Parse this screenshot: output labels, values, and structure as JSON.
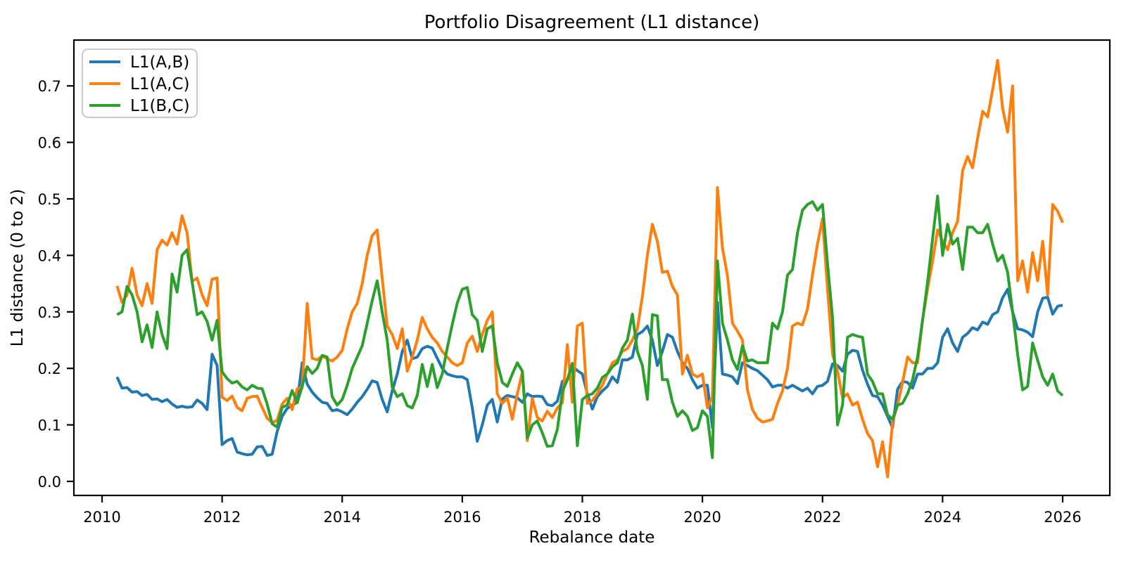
{
  "chart_data": {
    "type": "line",
    "title": "Portfolio Disagreement (L1 distance)",
    "xlabel": "Rebalance date",
    "ylabel": "L1 distance (0 to 2)",
    "x_start_year": 2010,
    "x_start_month": 4,
    "frequency": "monthly",
    "x_ticks": [
      2010,
      2012,
      2014,
      2016,
      2018,
      2020,
      2022,
      2024,
      2026
    ],
    "y_ticks": [
      "0.0",
      "0.1",
      "0.2",
      "0.3",
      "0.4",
      "0.5",
      "0.6",
      "0.7"
    ],
    "ylim": [
      -0.031,
      0.781
    ],
    "xlim": [
      2009.53,
      2026.79
    ],
    "grid": false,
    "legend": {
      "position": "upper left",
      "entries": [
        "L1(A,B)",
        "L1(A,C)",
        "L1(B,C)"
      ]
    },
    "colors": {
      "L1(A,B)": "#1f77b4",
      "L1(A,C)": "#ff7f0e",
      "L1(B,C)": "#2ca02c",
      "spine": "#000000",
      "legend_edge": "#cccccc",
      "background": "#ffffff"
    },
    "series": [
      {
        "name": "L1(A,B)",
        "color": "#1f77b4",
        "values": [
          0.185,
          0.165,
          0.166,
          0.158,
          0.159,
          0.152,
          0.154,
          0.145,
          0.146,
          0.141,
          0.145,
          0.137,
          0.131,
          0.133,
          0.131,
          0.132,
          0.144,
          0.138,
          0.127,
          0.225,
          0.205,
          0.065,
          0.072,
          0.076,
          0.052,
          0.049,
          0.047,
          0.048,
          0.061,
          0.062,
          0.046,
          0.048,
          0.088,
          0.115,
          0.129,
          0.135,
          0.14,
          0.21,
          0.172,
          0.158,
          0.148,
          0.14,
          0.138,
          0.125,
          0.127,
          0.123,
          0.118,
          0.128,
          0.14,
          0.15,
          0.163,
          0.178,
          0.175,
          0.145,
          0.123,
          0.16,
          0.19,
          0.23,
          0.25,
          0.217,
          0.22,
          0.235,
          0.239,
          0.236,
          0.218,
          0.2,
          0.19,
          0.187,
          0.185,
          0.185,
          0.18,
          0.13,
          0.071,
          0.1,
          0.135,
          0.145,
          0.105,
          0.146,
          0.152,
          0.15,
          0.148,
          0.14,
          0.155,
          0.15,
          0.151,
          0.15,
          0.136,
          0.134,
          0.142,
          0.177,
          0.18,
          0.205,
          0.196,
          0.19,
          0.155,
          0.128,
          0.15,
          0.16,
          0.168,
          0.185,
          0.175,
          0.215,
          0.215,
          0.22,
          0.26,
          0.265,
          0.275,
          0.25,
          0.205,
          0.23,
          0.26,
          0.255,
          0.23,
          0.21,
          0.2,
          0.18,
          0.165,
          0.17,
          0.17,
          0.095,
          0.317,
          0.19,
          0.188,
          0.185,
          0.173,
          0.21,
          0.205,
          0.2,
          0.196,
          0.188,
          0.18,
          0.167,
          0.17,
          0.17,
          0.165,
          0.17,
          0.165,
          0.16,
          0.165,
          0.155,
          0.168,
          0.17,
          0.177,
          0.208,
          0.205,
          0.195,
          0.225,
          0.232,
          0.23,
          0.197,
          0.172,
          0.152,
          0.15,
          0.135,
          0.115,
          0.095,
          0.163,
          0.177,
          0.175,
          0.165,
          0.19,
          0.19,
          0.2,
          0.2,
          0.21,
          0.255,
          0.27,
          0.245,
          0.23,
          0.255,
          0.262,
          0.272,
          0.268,
          0.282,
          0.278,
          0.295,
          0.3,
          0.325,
          0.34,
          0.3,
          0.27,
          0.268,
          0.264,
          0.256,
          0.3,
          0.324,
          0.326,
          0.296,
          0.31,
          0.312
        ]
      },
      {
        "name": "L1(A,C)",
        "color": "#ff7f0e",
        "values": [
          0.346,
          0.317,
          0.33,
          0.377,
          0.33,
          0.311,
          0.35,
          0.315,
          0.41,
          0.427,
          0.418,
          0.44,
          0.42,
          0.47,
          0.44,
          0.354,
          0.36,
          0.33,
          0.311,
          0.358,
          0.36,
          0.149,
          0.143,
          0.151,
          0.131,
          0.125,
          0.147,
          0.15,
          0.151,
          0.131,
          0.112,
          0.104,
          0.108,
          0.137,
          0.147,
          0.127,
          0.164,
          0.166,
          0.315,
          0.218,
          0.215,
          0.222,
          0.217,
          0.213,
          0.22,
          0.232,
          0.27,
          0.3,
          0.315,
          0.35,
          0.4,
          0.435,
          0.445,
          0.36,
          0.275,
          0.26,
          0.235,
          0.27,
          0.195,
          0.22,
          0.25,
          0.29,
          0.27,
          0.255,
          0.245,
          0.23,
          0.22,
          0.21,
          0.205,
          0.21,
          0.245,
          0.257,
          0.23,
          0.26,
          0.285,
          0.3,
          0.155,
          0.138,
          0.148,
          0.11,
          0.155,
          0.193,
          0.072,
          0.147,
          0.113,
          0.107,
          0.124,
          0.113,
          0.13,
          0.139,
          0.242,
          0.14,
          0.275,
          0.28,
          0.138,
          0.143,
          0.156,
          0.17,
          0.19,
          0.21,
          0.215,
          0.23,
          0.235,
          0.25,
          0.27,
          0.327,
          0.4,
          0.455,
          0.425,
          0.37,
          0.372,
          0.345,
          0.33,
          0.19,
          0.223,
          0.19,
          0.185,
          0.19,
          0.13,
          0.15,
          0.52,
          0.413,
          0.364,
          0.28,
          0.266,
          0.25,
          0.162,
          0.127,
          0.112,
          0.105,
          0.107,
          0.11,
          0.138,
          0.16,
          0.2,
          0.275,
          0.28,
          0.277,
          0.305,
          0.365,
          0.42,
          0.465,
          0.34,
          0.225,
          0.195,
          0.148,
          0.155,
          0.135,
          0.14,
          0.11,
          0.085,
          0.072,
          0.026,
          0.07,
          0.008,
          0.105,
          0.135,
          0.175,
          0.22,
          0.21,
          0.21,
          0.285,
          0.34,
          0.39,
          0.445,
          0.425,
          0.41,
          0.44,
          0.46,
          0.55,
          0.575,
          0.555,
          0.607,
          0.655,
          0.645,
          0.693,
          0.745,
          0.66,
          0.618,
          0.7,
          0.355,
          0.39,
          0.335,
          0.405,
          0.355,
          0.425,
          0.33,
          0.49,
          0.478,
          0.458
        ]
      },
      {
        "name": "L1(B,C)",
        "color": "#2ca02c",
        "values": [
          0.295,
          0.3,
          0.345,
          0.33,
          0.3,
          0.247,
          0.277,
          0.237,
          0.3,
          0.26,
          0.235,
          0.367,
          0.335,
          0.4,
          0.41,
          0.353,
          0.295,
          0.3,
          0.283,
          0.25,
          0.285,
          0.194,
          0.182,
          0.174,
          0.177,
          0.167,
          0.162,
          0.17,
          0.165,
          0.164,
          0.137,
          0.102,
          0.096,
          0.131,
          0.135,
          0.161,
          0.139,
          0.168,
          0.203,
          0.191,
          0.2,
          0.223,
          0.22,
          0.15,
          0.135,
          0.145,
          0.17,
          0.2,
          0.22,
          0.24,
          0.28,
          0.32,
          0.355,
          0.3,
          0.25,
          0.167,
          0.15,
          0.155,
          0.134,
          0.13,
          0.152,
          0.207,
          0.168,
          0.207,
          0.166,
          0.19,
          0.236,
          0.278,
          0.316,
          0.34,
          0.343,
          0.295,
          0.285,
          0.23,
          0.27,
          0.275,
          0.21,
          0.175,
          0.168,
          0.19,
          0.21,
          0.195,
          0.077,
          0.1,
          0.107,
          0.086,
          0.062,
          0.063,
          0.092,
          0.159,
          0.18,
          0.209,
          0.063,
          0.145,
          0.152,
          0.155,
          0.165,
          0.184,
          0.19,
          0.203,
          0.21,
          0.236,
          0.25,
          0.296,
          0.23,
          0.205,
          0.145,
          0.295,
          0.293,
          0.18,
          0.18,
          0.14,
          0.115,
          0.125,
          0.115,
          0.09,
          0.095,
          0.125,
          0.115,
          0.042,
          0.39,
          0.28,
          0.25,
          0.215,
          0.198,
          0.24,
          0.213,
          0.215,
          0.21,
          0.21,
          0.21,
          0.28,
          0.27,
          0.3,
          0.365,
          0.375,
          0.44,
          0.48,
          0.49,
          0.495,
          0.48,
          0.49,
          0.385,
          0.29,
          0.1,
          0.135,
          0.255,
          0.26,
          0.257,
          0.255,
          0.19,
          0.177,
          0.155,
          0.155,
          0.118,
          0.11,
          0.135,
          0.138,
          0.155,
          0.18,
          0.22,
          0.285,
          0.352,
          0.43,
          0.505,
          0.4,
          0.455,
          0.42,
          0.43,
          0.375,
          0.45,
          0.45,
          0.44,
          0.44,
          0.455,
          0.42,
          0.39,
          0.4,
          0.37,
          0.3,
          0.225,
          0.162,
          0.168,
          0.245,
          0.214,
          0.185,
          0.17,
          0.19,
          0.16,
          0.152
        ]
      }
    ]
  }
}
